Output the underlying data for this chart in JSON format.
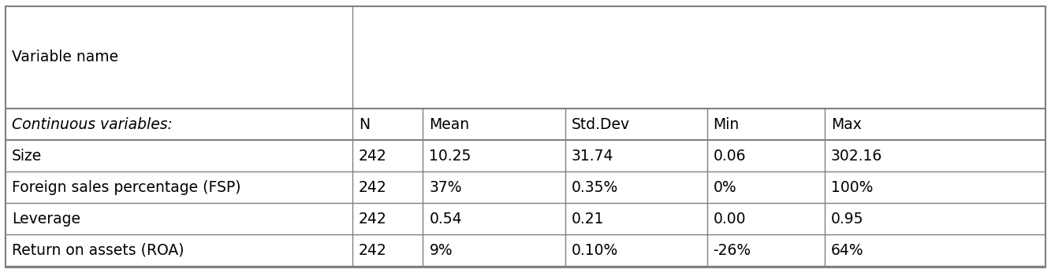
{
  "header_row": [
    "Variable name",
    "",
    "",
    "",
    "",
    ""
  ],
  "subheader_row": [
    "Continuous variables:",
    "N",
    "Mean",
    "Std.Dev",
    "Min",
    "Max"
  ],
  "rows": [
    [
      "Size",
      "242",
      "10.25",
      "31.74",
      "0.06",
      "302.16"
    ],
    [
      "Foreign sales percentage (FSP)",
      "242",
      "37%",
      "0.35%",
      "0%",
      "100%"
    ],
    [
      "Leverage",
      "242",
      "0.54",
      "0.21",
      "0.00",
      "0.95"
    ],
    [
      "Return on assets (ROA)",
      "242",
      "9%",
      "0.10%",
      "-26%",
      "64%"
    ]
  ],
  "bg_color": "#ffffff",
  "border_color": "#808080",
  "text_color": "#000000",
  "fontsize": 13.5
}
